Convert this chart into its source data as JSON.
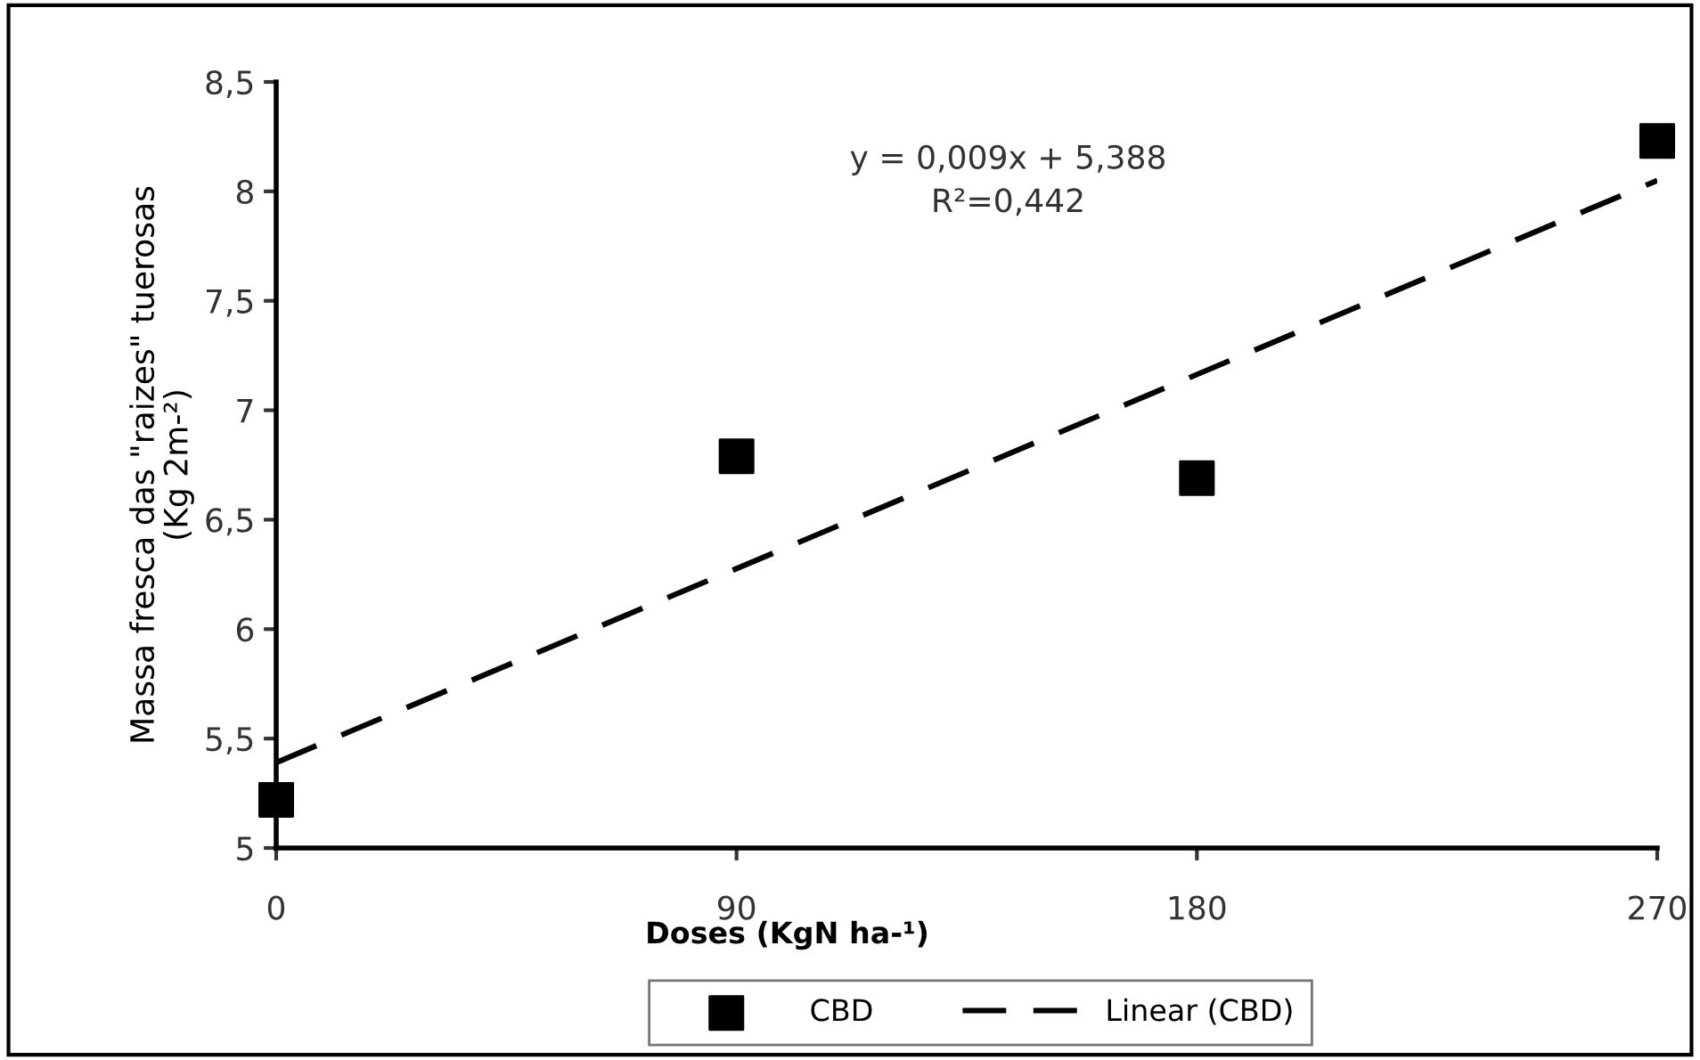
{
  "chart_data": {
    "type": "scatter",
    "xlabel": "Doses (KgN ha-¹)",
    "ylabel": "Massa fresca das \"raizes\" tuerosas\n(Kg 2m-²)",
    "series": [
      {
        "name": "CBD",
        "color": "#000000",
        "marker": "square",
        "x": [
          0,
          90,
          180,
          270
        ],
        "values": [
          5.22,
          6.79,
          6.69,
          8.23
        ]
      },
      {
        "name": "Linear (CBD)",
        "type": "line",
        "color": "#000000",
        "line_style": "dashed",
        "marker": "none",
        "x": [
          0,
          270
        ],
        "values": [
          5.39,
          8.05
        ]
      }
    ],
    "xlim": [
      0,
      270
    ],
    "xticks": [
      0,
      90,
      180,
      270
    ],
    "ylim": [
      5,
      8.5
    ],
    "yticks": [
      5,
      {
        "value": 5.5,
        "label": "5,5"
      },
      6,
      {
        "value": 6.5,
        "label": "6,5"
      },
      7,
      {
        "value": 7.5,
        "label": "7,5"
      },
      8,
      {
        "value": 8.5,
        "label": "8,5"
      }
    ],
    "grid": false,
    "legend": "bottom",
    "annotations": [
      "y = 0,009x + 5,388\nR²=0,442"
    ]
  }
}
